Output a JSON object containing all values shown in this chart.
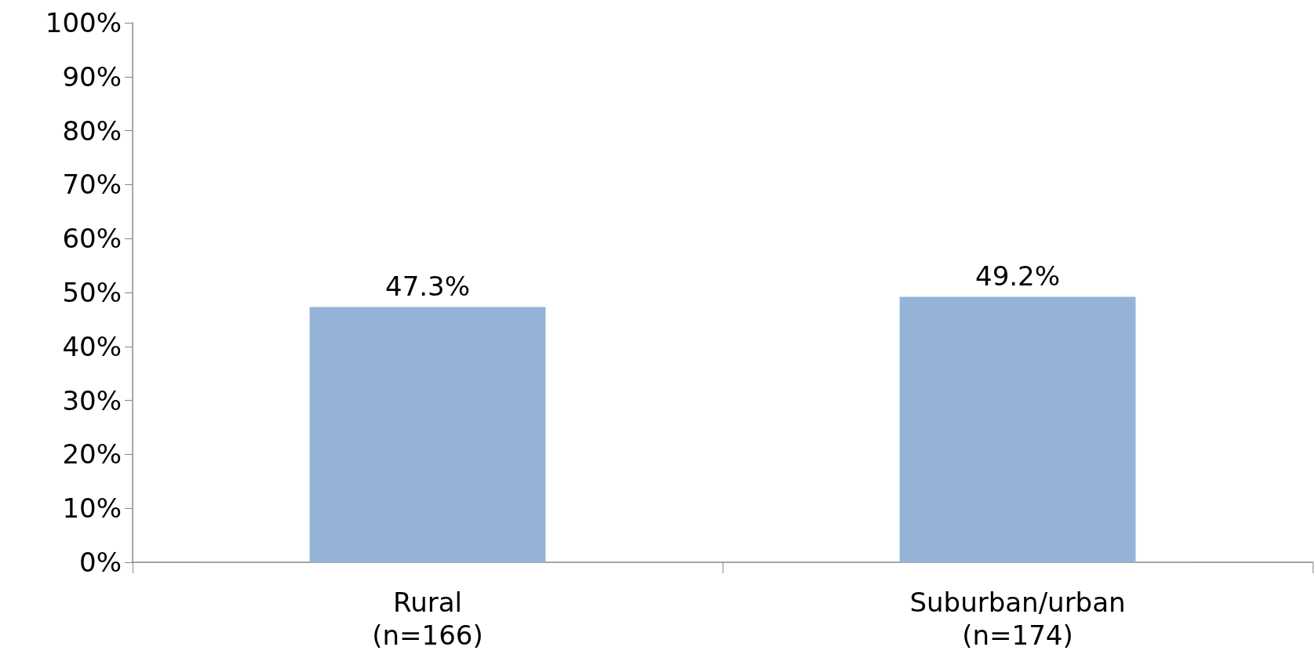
{
  "chart_data": {
    "type": "bar",
    "categories": [
      "Rural\n(n=166)",
      "Suburban/urban\n(n=174)"
    ],
    "values": [
      47.3,
      49.2
    ],
    "color": "#95b3d7",
    "value_labels": [
      "47.3%",
      "49.2%"
    ],
    "ylim": [
      0,
      100
    ],
    "yticks": [
      {
        "value": 0,
        "label": "0%"
      },
      {
        "value": 10,
        "label": "10%"
      },
      {
        "value": 20,
        "label": "20%"
      },
      {
        "value": 30,
        "label": "30%"
      },
      {
        "value": 40,
        "label": "40%"
      },
      {
        "value": 50,
        "label": "50%"
      },
      {
        "value": 60,
        "label": "60%"
      },
      {
        "value": 70,
        "label": "70%"
      },
      {
        "value": 80,
        "label": "80%"
      },
      {
        "value": 90,
        "label": "90%"
      },
      {
        "value": 100,
        "label": "100%"
      }
    ],
    "grid": false
  }
}
